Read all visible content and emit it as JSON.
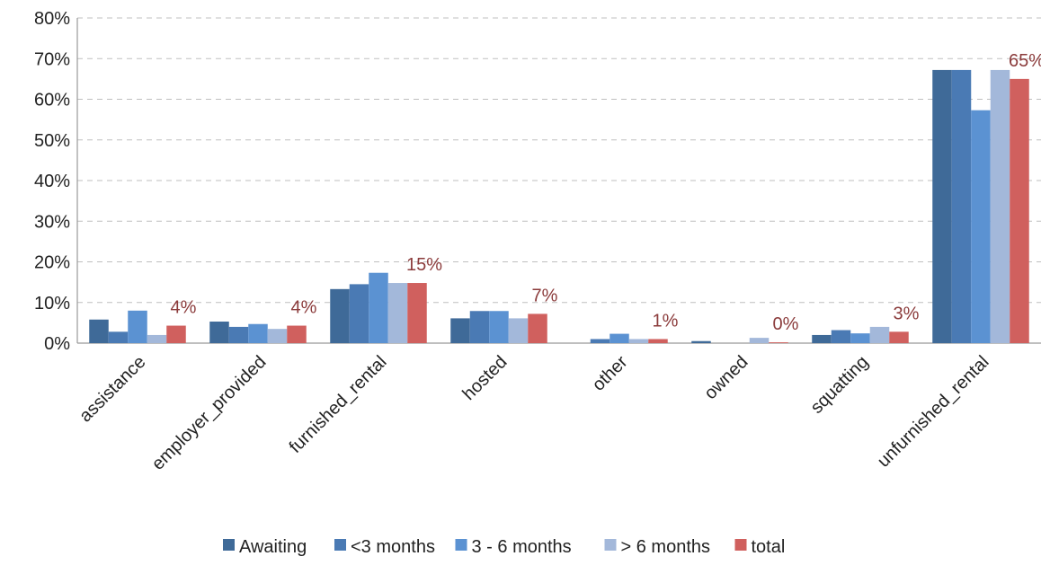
{
  "chart_data": {
    "type": "bar",
    "categories": [
      "assistance",
      "employer_provided",
      "furnished_rental",
      "hosted",
      "other",
      "owned",
      "squatting",
      "unfurnished_rental"
    ],
    "series": [
      {
        "name": "Awaiting",
        "color": "#3f6a98",
        "values": [
          5.8,
          5.3,
          13.3,
          6.1,
          0,
          0.5,
          2,
          67.2
        ]
      },
      {
        "name": "<3 months",
        "color": "#4a7ab4",
        "values": [
          2.8,
          4,
          14.5,
          7.9,
          1,
          0,
          3.2,
          67.2
        ]
      },
      {
        "name": "3 - 6 months",
        "color": "#5b92d2",
        "values": [
          8,
          4.7,
          17.3,
          7.9,
          2.3,
          0,
          2.4,
          57.3
        ]
      },
      {
        "name": "> 6 months",
        "color": "#a3b8da",
        "values": [
          2,
          3.5,
          14.8,
          6.1,
          1,
          1.3,
          4,
          67.2
        ]
      },
      {
        "name": "total",
        "color": "#d0605e",
        "values": [
          4.3,
          4.3,
          14.8,
          7.2,
          1,
          0.2,
          2.8,
          65
        ],
        "value_labels": [
          "4%",
          "4%",
          "15%",
          "7%",
          "1%",
          "0%",
          "3%",
          "65%"
        ]
      }
    ],
    "ylim": [
      0,
      80
    ],
    "yticks": [
      {
        "value": 0,
        "label": "0%"
      },
      {
        "value": 10,
        "label": "10%"
      },
      {
        "value": 20,
        "label": "20%"
      },
      {
        "value": 30,
        "label": "30%"
      },
      {
        "value": 40,
        "label": "40%"
      },
      {
        "value": 50,
        "label": "50%"
      },
      {
        "value": 60,
        "label": "60%"
      },
      {
        "value": 70,
        "label": "70%"
      },
      {
        "value": 80,
        "label": "80%"
      }
    ],
    "grid": true,
    "legend": "bottom"
  }
}
